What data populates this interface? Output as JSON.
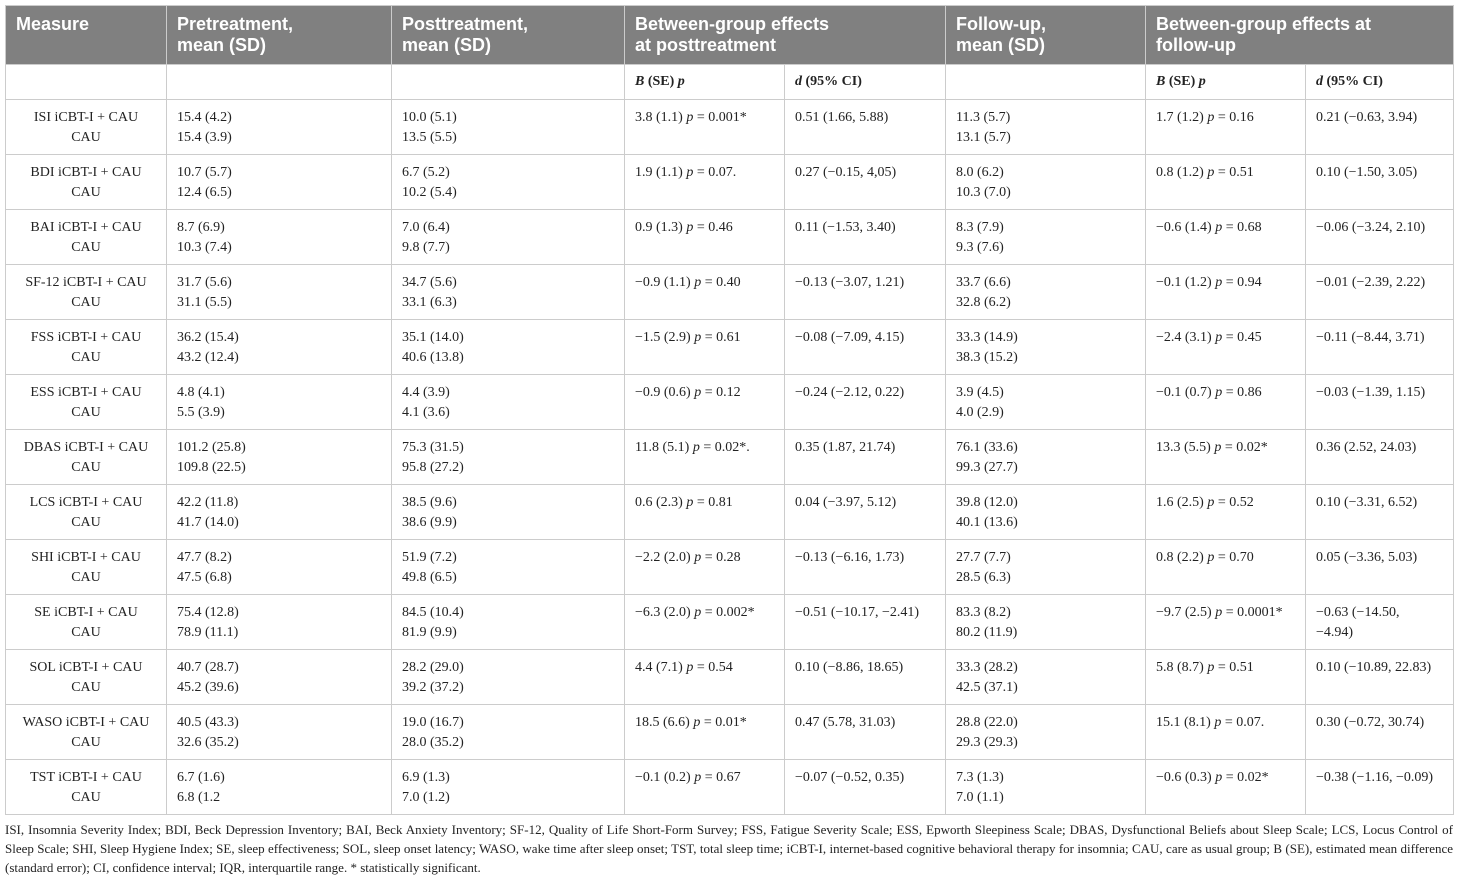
{
  "colors": {
    "header_bg": "#808080",
    "header_text": "#ffffff",
    "rule": "#cccccc",
    "text": "#222222"
  },
  "table": {
    "header": {
      "measure": "Measure",
      "pretreatment": [
        "Pretreatment,",
        "mean (SD)"
      ],
      "posttreatment": [
        "Posttreatment,",
        "mean (SD)"
      ],
      "between_post": [
        "Between-group effects",
        "at posttreatment"
      ],
      "follow_up": [
        "Follow-up,",
        "mean (SD)"
      ],
      "between_follow_up": [
        "Between-group effects at",
        "follow-up"
      ]
    },
    "subheader": {
      "posttreatment": {
        "b": "B",
        "se": "(SE)",
        "p": "p",
        "d": "d",
        "ci": "(95% CI)"
      },
      "follow_up": {
        "b": "B",
        "se": "(SE)",
        "p": "p",
        "d": "d",
        "ci": "(95% CI)"
      }
    },
    "rows": [
      {
        "label": [
          "ISI iCBT-I + CAU",
          "CAU"
        ],
        "pre": [
          "15.4 (4.2)",
          "15.4 (3.9)"
        ],
        "post": [
          "10.0 (5.1)",
          "13.5 (5.5)"
        ],
        "post_b": "3.8 (1.1) p = 0.001*",
        "post_d": "0.51 (1.66, 5.88)",
        "fu": [
          "11.3 (5.7)",
          "13.1 (5.7)"
        ],
        "fu_b": "1.7 (1.2) p = 0.16",
        "fu_d": "0.21 (−0.63, 3.94)"
      },
      {
        "label": [
          "BDI iCBT-I + CAU",
          "CAU"
        ],
        "pre": [
          "10.7 (5.7)",
          "12.4 (6.5)"
        ],
        "post": [
          "6.7 (5.2)",
          "10.2 (5.4)"
        ],
        "post_b": "1.9 (1.1) p = 0.07.",
        "post_d": "0.27 (−0.15, 4,05)",
        "fu": [
          "8.0 (6.2)",
          "10.3 (7.0)"
        ],
        "fu_b": "0.8 (1.2) p = 0.51",
        "fu_d": "0.10 (−1.50, 3.05)"
      },
      {
        "label": [
          "BAI iCBT-I + CAU",
          "CAU"
        ],
        "pre": [
          "8.7 (6.9)",
          "10.3 (7.4)"
        ],
        "post": [
          "7.0 (6.4)",
          "9.8 (7.7)"
        ],
        "post_b": "0.9 (1.3) p = 0.46",
        "post_d": "0.11 (−1.53, 3.40)",
        "fu": [
          "8.3 (7.9)",
          "9.3 (7.6)"
        ],
        "fu_b": "−0.6 (1.4) p = 0.68",
        "fu_d": "−0.06 (−3.24, 2.10)"
      },
      {
        "label": [
          "SF-12 iCBT-I + CAU",
          "CAU"
        ],
        "pre": [
          "31.7 (5.6)",
          "31.1 (5.5)"
        ],
        "post": [
          "34.7 (5.6)",
          "33.1 (6.3)"
        ],
        "post_b": "−0.9 (1.1) p = 0.40",
        "post_d": "−0.13 (−3.07, 1.21)",
        "fu": [
          "33.7 (6.6)",
          "32.8 (6.2)"
        ],
        "fu_b": "−0.1 (1.2) p = 0.94",
        "fu_d": "−0.01 (−2.39, 2.22)"
      },
      {
        "label": [
          "FSS iCBT-I + CAU",
          "CAU"
        ],
        "pre": [
          "36.2 (15.4)",
          "43.2 (12.4)"
        ],
        "post": [
          "35.1 (14.0)",
          "40.6 (13.8)"
        ],
        "post_b": "−1.5 (2.9) p = 0.61",
        "post_d": "−0.08 (−7.09, 4.15)",
        "fu": [
          "33.3 (14.9)",
          "38.3 (15.2)"
        ],
        "fu_b": "−2.4 (3.1) p = 0.45",
        "fu_d": "−0.11 (−8.44, 3.71)"
      },
      {
        "label": [
          "ESS iCBT-I + CAU",
          "CAU"
        ],
        "pre": [
          "4.8 (4.1)",
          "5.5 (3.9)"
        ],
        "post": [
          "4.4 (3.9)",
          "4.1 (3.6)"
        ],
        "post_b": "−0.9 (0.6) p = 0.12",
        "post_d": "−0.24 (−2.12, 0.22)",
        "fu": [
          "3.9 (4.5)",
          "4.0 (2.9)"
        ],
        "fu_b": "−0.1 (0.7) p = 0.86",
        "fu_d": "−0.03 (−1.39, 1.15)"
      },
      {
        "label": [
          "DBAS iCBT-I + CAU",
          "CAU"
        ],
        "pre": [
          "101.2 (25.8)",
          "109.8 (22.5)"
        ],
        "post": [
          "75.3 (31.5)",
          "95.8 (27.2)"
        ],
        "post_b": "11.8 (5.1) p = 0.02*.",
        "post_d": "0.35 (1.87, 21.74)",
        "fu": [
          "76.1 (33.6)",
          "99.3 (27.7)"
        ],
        "fu_b": "13.3 (5.5) p = 0.02*",
        "fu_d": "0.36 (2.52, 24.03)"
      },
      {
        "label": [
          "LCS iCBT-I + CAU",
          "CAU"
        ],
        "pre": [
          "42.2 (11.8)",
          "41.7 (14.0)"
        ],
        "post": [
          "38.5 (9.6)",
          "38.6 (9.9)"
        ],
        "post_b": "0.6 (2.3) p = 0.81",
        "post_d": "0.04 (−3.97, 5.12)",
        "fu": [
          "39.8 (12.0)",
          "40.1 (13.6)"
        ],
        "fu_b": "1.6 (2.5) p = 0.52",
        "fu_d": "0.10 (−3.31, 6.52)"
      },
      {
        "label": [
          "SHI iCBT-I + CAU",
          "CAU"
        ],
        "pre": [
          "47.7 (8.2)",
          "47.5 (6.8)"
        ],
        "post": [
          "51.9 (7.2)",
          "49.8 (6.5)"
        ],
        "post_b": "−2.2 (2.0) p = 0.28",
        "post_d": "−0.13 (−6.16, 1.73)",
        "fu": [
          "27.7 (7.7)",
          "28.5 (6.3)"
        ],
        "fu_b": "0.8 (2.2) p = 0.70",
        "fu_d": "0.05 (−3.36, 5.03)"
      },
      {
        "label": [
          "SE iCBT-I + CAU",
          "CAU"
        ],
        "pre": [
          "75.4 (12.8)",
          "78.9 (11.1)"
        ],
        "post": [
          "84.5 (10.4)",
          "81.9 (9.9)"
        ],
        "post_b": "−6.3 (2.0) p = 0.002*",
        "post_d": "−0.51 (−10.17, −2.41)",
        "fu": [
          "83.3 (8.2)",
          "80.2 (11.9)"
        ],
        "fu_b": "−9.7 (2.5) p = 0.0001*",
        "fu_d": "−0.63 (−14.50, −4.94)"
      },
      {
        "label": [
          "SOL iCBT-I + CAU",
          "CAU"
        ],
        "pre": [
          "40.7 (28.7)",
          "45.2 (39.6)"
        ],
        "post": [
          "28.2 (29.0)",
          "39.2 (37.2)"
        ],
        "post_b": "4.4 (7.1) p = 0.54",
        "post_d": "0.10 (−8.86, 18.65)",
        "fu": [
          "33.3 (28.2)",
          "42.5 (37.1)"
        ],
        "fu_b": "5.8 (8.7) p = 0.51",
        "fu_d": "0.10 (−10.89, 22.83)"
      },
      {
        "label": [
          "WASO iCBT-I + CAU",
          "CAU"
        ],
        "pre": [
          "40.5 (43.3)",
          "32.6 (35.2)"
        ],
        "post": [
          "19.0 (16.7)",
          "28.0 (35.2)"
        ],
        "post_b": "18.5 (6.6) p = 0.01*",
        "post_d": "0.47 (5.78, 31.03)",
        "fu": [
          "28.8 (22.0)",
          "29.3 (29.3)"
        ],
        "fu_b": "15.1 (8.1) p = 0.07.",
        "fu_d": "0.30 (−0.72, 30.74)"
      },
      {
        "label": [
          "TST iCBT-I + CAU",
          "CAU"
        ],
        "pre": [
          "6.7 (1.6)",
          "6.8 (1.2"
        ],
        "post": [
          "6.9 (1.3)",
          "7.0 (1.2)"
        ],
        "post_b": "−0.1 (0.2) p = 0.67",
        "post_d": "−0.07 (−0.52, 0.35)",
        "fu": [
          "7.3 (1.3)",
          "7.0 (1.1)"
        ],
        "fu_b": "−0.6 (0.3) p = 0.02*",
        "fu_d": "−0.38 (−1.16, −0.09)"
      }
    ]
  },
  "footnote": "ISI, Insomnia Severity Index; BDI, Beck Depression Inventory; BAI, Beck Anxiety Inventory; SF-12, Quality of Life Short-Form Survey; FSS, Fatigue Severity Scale; ESS, Epworth Sleepiness Scale; DBAS, Dysfunctional Beliefs about Sleep Scale; LCS, Locus Control of Sleep Scale; SHI, Sleep Hygiene Index; SE, sleep effectiveness; SOL, sleep onset latency; WASO, wake time after sleep onset; TST, total sleep time; iCBT-I, internet-based cognitive behavioral therapy for insomnia; CAU, care as usual group; B (SE), estimated mean difference (standard error); CI, confidence interval; IQR, interquartile range. * statistically significant."
}
